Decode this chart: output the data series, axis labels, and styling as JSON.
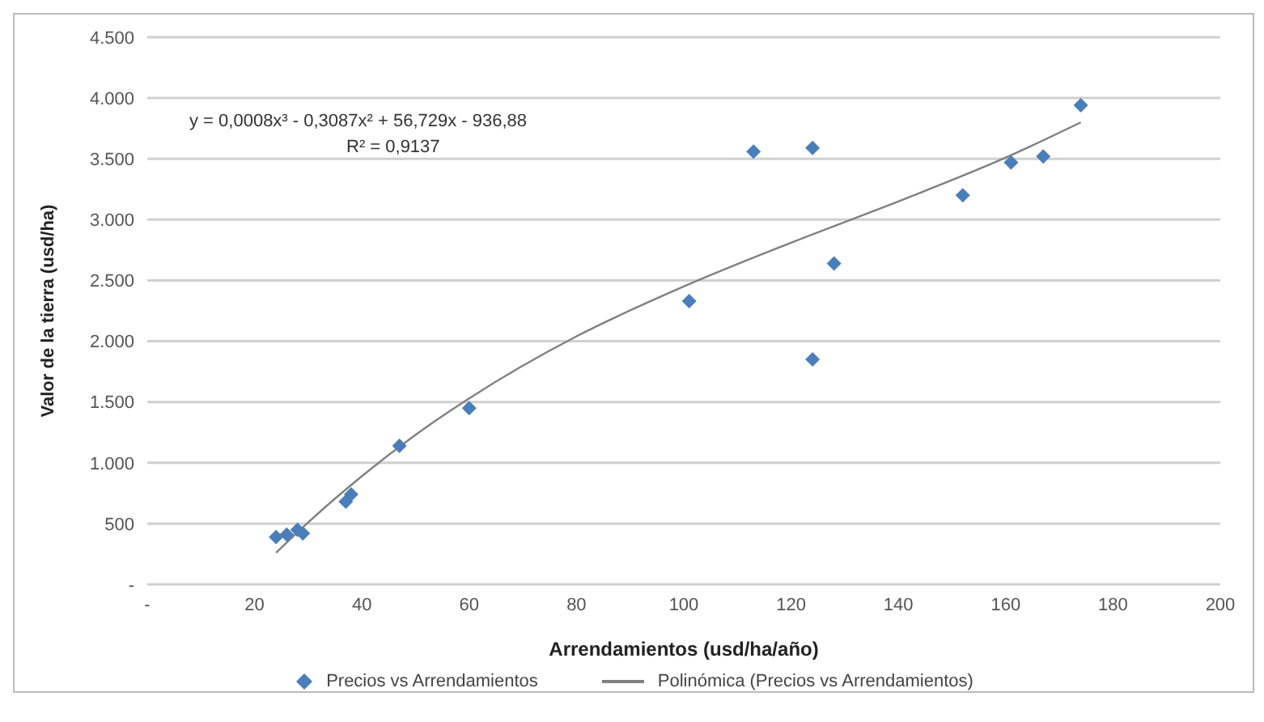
{
  "chart_data": {
    "type": "scatter",
    "xlabel": "Arrendamientos (usd/ha/año)",
    "ylabel": "Valor de la tierra (usd/ha)",
    "annotations": [
      "y = 0,0008x³ - 0,3087x² + 56,729x - 936,88",
      "R² = 0,9137"
    ],
    "series": [
      {
        "name": "Precios vs Arrendamientos",
        "color": "#4a7ebb",
        "marker": "diamond",
        "x": [
          24,
          26,
          28,
          29,
          37,
          38,
          47,
          60,
          101,
          113,
          124,
          124,
          128,
          152,
          161,
          167,
          174
        ],
        "values": [
          390,
          410,
          450,
          420,
          680,
          740,
          1140,
          1450,
          2330,
          3560,
          3590,
          1850,
          2640,
          3200,
          3470,
          3520,
          3940
        ]
      },
      {
        "name": "Polinómica (Precios vs Arrendamientos)",
        "type": "line",
        "color": "#808080",
        "marker": "none",
        "line_style": "solid",
        "x": [
          24,
          30,
          40,
          50,
          60,
          80,
          100,
          120,
          140,
          160,
          174
        ],
        "values": [
          260,
          510,
          890,
          1230,
          1530,
          2040,
          2450,
          2810,
          3150,
          3510,
          3800
        ]
      }
    ],
    "xlim": [
      0,
      200
    ],
    "xticks": [
      {
        "value": 0,
        "label": "-"
      },
      20,
      40,
      60,
      80,
      100,
      120,
      140,
      160,
      180,
      200
    ],
    "ylim": [
      0,
      4500
    ],
    "yticks": [
      {
        "value": 0,
        "label": "-"
      },
      {
        "value": 500,
        "label": "500"
      },
      {
        "value": 1000,
        "label": "1.000"
      },
      {
        "value": 1500,
        "label": "1.500"
      },
      {
        "value": 2000,
        "label": "2.000"
      },
      {
        "value": 2500,
        "label": "2.500"
      },
      {
        "value": 3000,
        "label": "3.000"
      },
      {
        "value": 3500,
        "label": "3.500"
      },
      {
        "value": 4000,
        "label": "4.000"
      },
      {
        "value": 4500,
        "label": "4.500"
      }
    ],
    "grid": "y",
    "legend": "bottom"
  }
}
